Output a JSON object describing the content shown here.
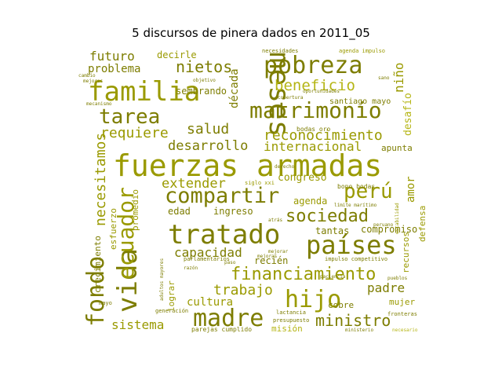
{
  "title": "5 discursos de pinera dados en 2011_05",
  "colors": {
    "dark": "#7d7d00",
    "mid": "#9a9a00",
    "bright": "#b5b514",
    "light": "#d2d230"
  },
  "words": [
    {
      "text": "fuerzas armadas",
      "size": 38,
      "color": "mid"
    },
    {
      "text": "familia",
      "size": 34,
      "color": "mid"
    },
    {
      "text": "pobreza",
      "size": 30,
      "color": "dark"
    },
    {
      "text": "meses",
      "size": 36,
      "color": "dark"
    },
    {
      "text": "matrimonio",
      "size": 28,
      "color": "dark"
    },
    {
      "text": "tratado",
      "size": 34,
      "color": "dark"
    },
    {
      "text": "países",
      "size": 32,
      "color": "dark"
    },
    {
      "text": "compartir",
      "size": 27,
      "color": "dark"
    },
    {
      "text": "vida",
      "size": 34,
      "color": "dark"
    },
    {
      "text": "hijo",
      "size": 30,
      "color": "mid"
    },
    {
      "text": "madre",
      "size": 30,
      "color": "dark"
    },
    {
      "text": "fondo",
      "size": 30,
      "color": "dark"
    },
    {
      "text": "ecuador",
      "size": 28,
      "color": "mid"
    },
    {
      "text": "perú",
      "size": 26,
      "color": "mid"
    },
    {
      "text": "tarea",
      "size": 26,
      "color": "dark"
    },
    {
      "text": "financiamiento",
      "size": 22,
      "color": "mid"
    },
    {
      "text": "sociedad",
      "size": 22,
      "color": "dark"
    },
    {
      "text": "ministro",
      "size": 20,
      "color": "dark"
    },
    {
      "text": "nietos",
      "size": 20,
      "color": "dark"
    },
    {
      "text": "beneficio",
      "size": 19,
      "color": "bright"
    },
    {
      "text": "reconocimiento",
      "size": 18,
      "color": "mid"
    },
    {
      "text": "internacional",
      "size": 16,
      "color": "mid"
    },
    {
      "text": "desarrollo",
      "size": 17,
      "color": "dark"
    },
    {
      "text": "requiere",
      "size": 18,
      "color": "mid"
    },
    {
      "text": "salud",
      "size": 18,
      "color": "dark"
    },
    {
      "text": "necesitamos",
      "size": 18,
      "color": "mid"
    },
    {
      "text": "extender",
      "size": 17,
      "color": "mid"
    },
    {
      "text": "trabajo",
      "size": 18,
      "color": "mid"
    },
    {
      "text": "capacidad",
      "size": 16,
      "color": "dark"
    },
    {
      "text": "sistema",
      "size": 16,
      "color": "mid"
    },
    {
      "text": "futuro",
      "size": 16,
      "color": "dark"
    },
    {
      "text": "problema",
      "size": 14,
      "color": "dark"
    },
    {
      "text": "padre",
      "size": 16,
      "color": "dark"
    },
    {
      "text": "cultura",
      "size": 14,
      "color": "mid"
    },
    {
      "text": "década",
      "size": 14,
      "color": "dark"
    },
    {
      "text": "niño",
      "size": 16,
      "color": "mid"
    },
    {
      "text": "amor",
      "size": 14,
      "color": "mid"
    },
    {
      "text": "desafío",
      "size": 13,
      "color": "bright"
    },
    {
      "text": "congreso",
      "size": 13,
      "color": "mid"
    },
    {
      "text": "agenda",
      "size": 12,
      "color": "mid"
    },
    {
      "text": "compromiso",
      "size": 12,
      "color": "dark"
    },
    {
      "text": "tantas",
      "size": 12,
      "color": "dark"
    },
    {
      "text": "edad",
      "size": 12,
      "color": "dark"
    },
    {
      "text": "ingreso",
      "size": 12,
      "color": "dark"
    },
    {
      "text": "recién",
      "size": 12,
      "color": "dark"
    },
    {
      "text": "sembrando",
      "size": 12,
      "color": "dark"
    },
    {
      "text": "decirle",
      "size": 12,
      "color": "mid"
    },
    {
      "text": "crecimiento",
      "size": 11,
      "color": "dark"
    },
    {
      "text": "esfuerzo",
      "size": 11,
      "color": "mid"
    },
    {
      "text": "promedio",
      "size": 11,
      "color": "mid"
    },
    {
      "text": "lograr",
      "size": 11,
      "color": "mid"
    },
    {
      "text": "misión",
      "size": 11,
      "color": "bright"
    },
    {
      "text": "mujer",
      "size": 11,
      "color": "mid"
    },
    {
      "text": "cobre",
      "size": 11,
      "color": "dark"
    },
    {
      "text": "recursos",
      "size": 11,
      "color": "mid"
    },
    {
      "text": "defensa",
      "size": 11,
      "color": "mid"
    },
    {
      "text": "apunta",
      "size": 11,
      "color": "dark"
    },
    {
      "text": "santiago mayo",
      "size": 10,
      "color": "dark"
    },
    {
      "text": "bodas oro",
      "size": 8,
      "color": "dark"
    },
    {
      "text": "bono bodas",
      "size": 8,
      "color": "dark"
    },
    {
      "text": "siglo xxi",
      "size": 7,
      "color": "mid"
    },
    {
      "text": "impulso competitivo",
      "size": 7,
      "color": "dark"
    },
    {
      "text": "parejas cumplido",
      "size": 8,
      "color": "dark"
    },
    {
      "text": "presupuesto",
      "size": 7,
      "color": "dark"
    },
    {
      "text": "lactancia",
      "size": 7,
      "color": "dark"
    },
    {
      "text": "fronteras",
      "size": 7,
      "color": "dark"
    },
    {
      "text": "parlamentarios",
      "size": 7,
      "color": "dark"
    },
    {
      "text": "generación",
      "size": 7,
      "color": "dark"
    },
    {
      "text": "agenda impulso",
      "size": 7,
      "color": "mid"
    },
    {
      "text": "necesidades",
      "size": 7,
      "color": "dark"
    },
    {
      "text": "oportunidades",
      "size": 6,
      "color": "dark"
    },
    {
      "text": "mecanismo",
      "size": 6,
      "color": "dark"
    },
    {
      "text": "objetivo",
      "size": 6,
      "color": "dark"
    },
    {
      "text": "límite marítimo",
      "size": 6,
      "color": "dark"
    },
    {
      "text": "paciencia",
      "size": 6,
      "color": "dark"
    },
    {
      "text": "adultos mayores",
      "size": 6,
      "color": "dark"
    },
    {
      "text": "mejoras",
      "size": 6,
      "color": "dark"
    },
    {
      "text": "cobertura",
      "size": 6,
      "color": "dark"
    },
    {
      "text": "estabilidad",
      "size": 6,
      "color": "mid"
    },
    {
      "text": "necesario",
      "size": 6,
      "color": "bright"
    },
    {
      "text": "mayo",
      "size": 7,
      "color": "dark"
    },
    {
      "text": "sano",
      "size": 6,
      "color": "dark"
    },
    {
      "text": "cambio",
      "size": 6,
      "color": "dark"
    },
    {
      "text": "mejores",
      "size": 6,
      "color": "dark"
    },
    {
      "text": "derecho",
      "size": 6,
      "color": "dark"
    },
    {
      "text": "mejorar",
      "size": 6,
      "color": "dark"
    },
    {
      "text": "ministerio",
      "size": 6,
      "color": "dark"
    },
    {
      "text": "razón",
      "size": 6,
      "color": "dark"
    },
    {
      "text": "paso",
      "size": 6,
      "color": "dark"
    },
    {
      "text": "atrás",
      "size": 6,
      "color": "dark"
    },
    {
      "text": "peruano",
      "size": 6,
      "color": "dark"
    },
    {
      "text": "pueblos",
      "size": 6,
      "color": "dark"
    }
  ]
}
